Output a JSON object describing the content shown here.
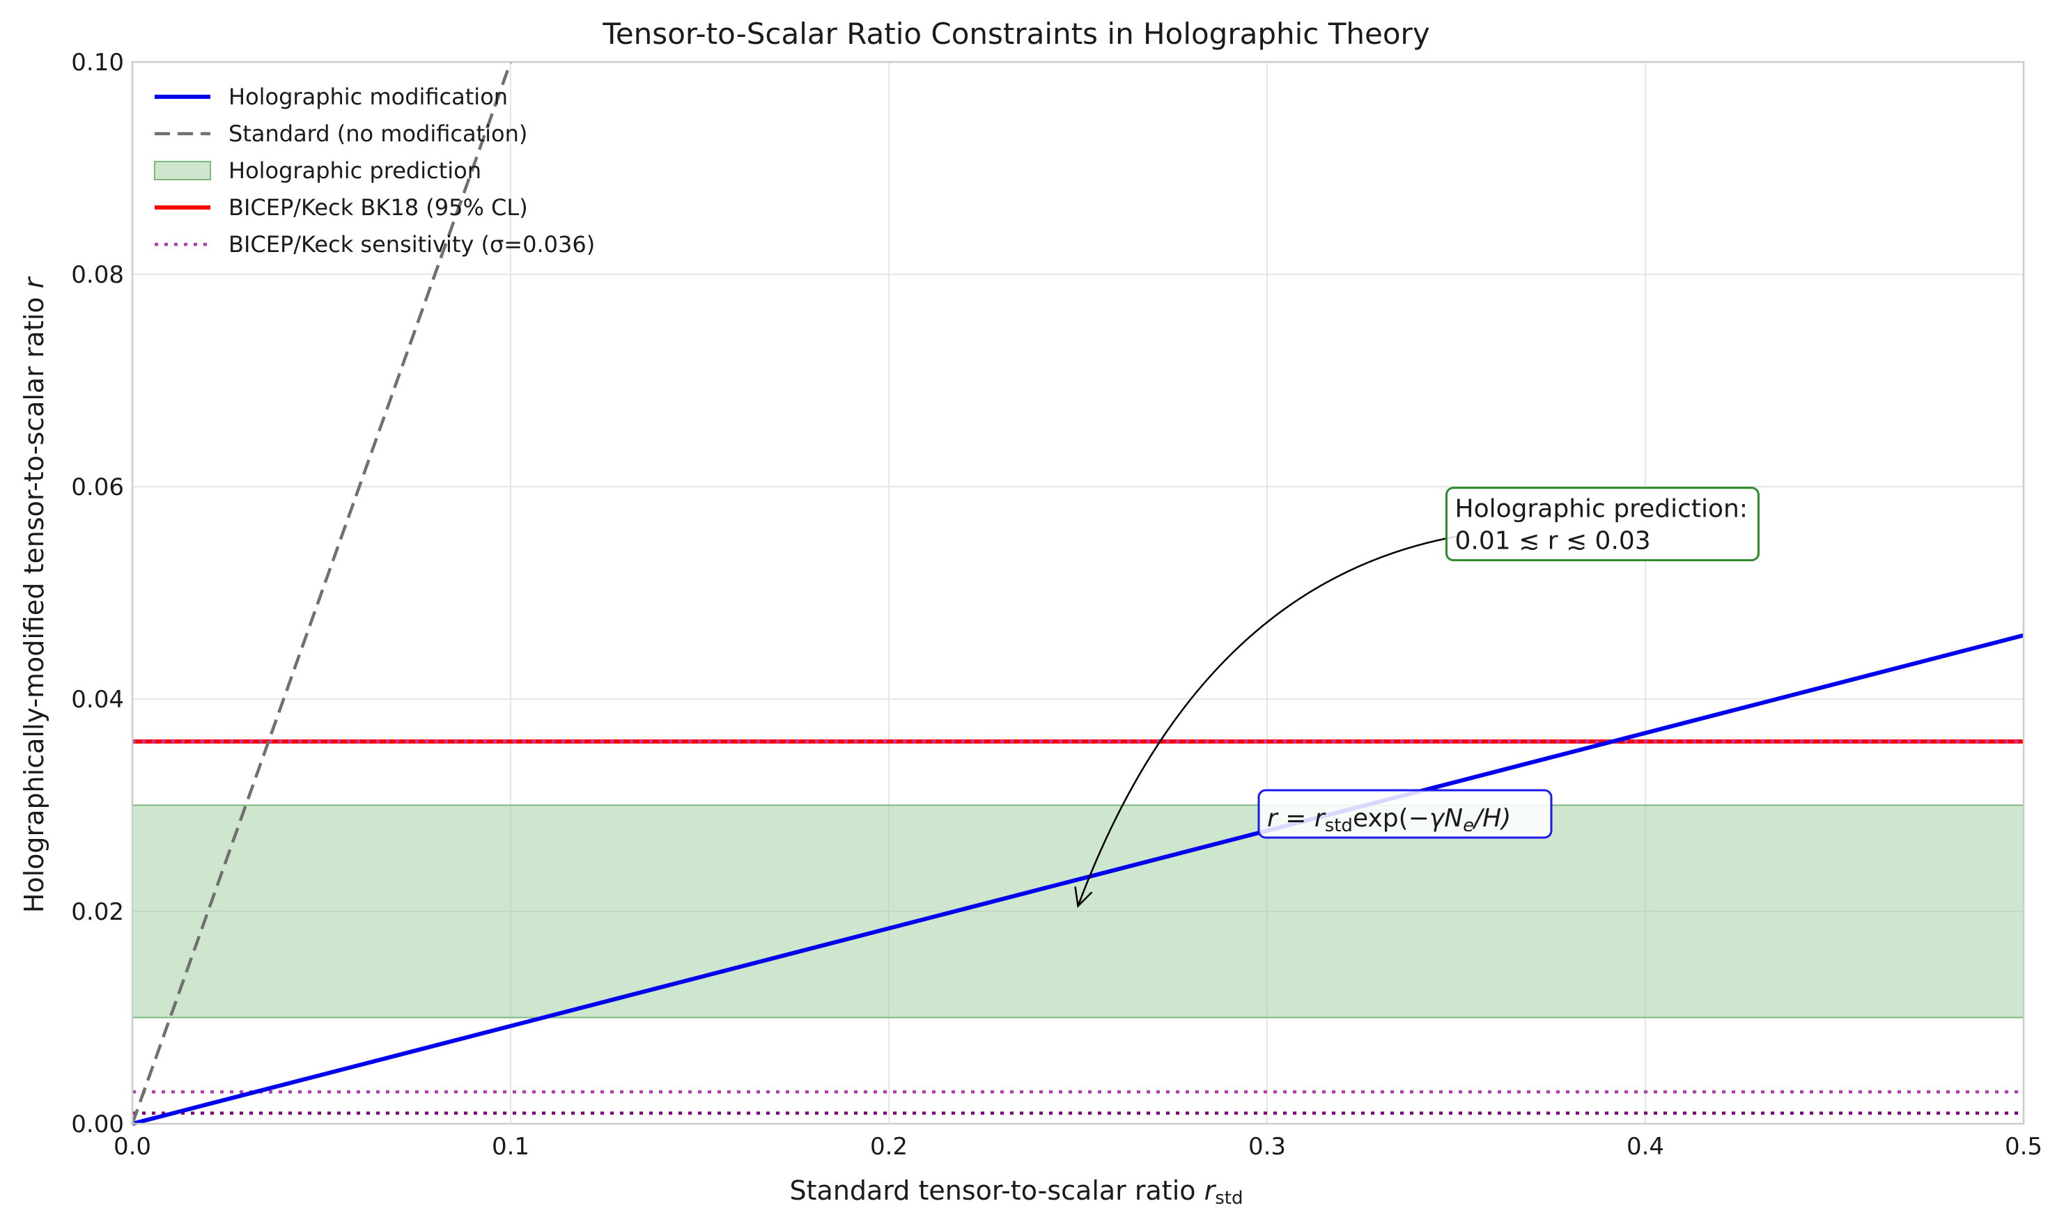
{
  "chart_data": {
    "type": "line",
    "title": "Tensor-to-Scalar Ratio Constraints in Holographic Theory",
    "xlabel": {
      "main": "Standard tensor-to-scalar ratio ",
      "var": "r",
      "sub": "std"
    },
    "ylabel": {
      "main": "Holographically-modified tensor-to-scalar ratio ",
      "var": "r"
    },
    "xlim": [
      0.0,
      0.5
    ],
    "ylim": [
      0.0,
      0.1
    ],
    "xticks": [
      0.0,
      0.1,
      0.2,
      0.3,
      0.4,
      0.5
    ],
    "xtick_labels": [
      "0.0",
      "0.1",
      "0.2",
      "0.3",
      "0.4",
      "0.5"
    ],
    "yticks": [
      0.0,
      0.02,
      0.04,
      0.06,
      0.08,
      0.1
    ],
    "ytick_labels": [
      "0.00",
      "0.02",
      "0.04",
      "0.06",
      "0.08",
      "0.10"
    ],
    "grid": true,
    "legend_position": "top-left",
    "series": [
      {
        "name": "Holographic modification",
        "style": "solid",
        "color": "#0000ee",
        "x": [
          0.0,
          0.5
        ],
        "y": [
          0.0,
          0.046
        ]
      },
      {
        "name": "Standard (no modification)",
        "style": "dashed",
        "color": "#707070",
        "x": [
          0.0,
          0.1
        ],
        "y": [
          0.0,
          0.1
        ]
      }
    ],
    "bands": [
      {
        "name": "Holographic prediction",
        "y0": 0.01,
        "y1": 0.03,
        "color": "#9fd09f"
      }
    ],
    "hlines": [
      {
        "name": "BICEP/Keck BK18 (95% CL)",
        "y": 0.036,
        "style": "solid",
        "color": "#ff0000"
      },
      {
        "name": "BICEP/Keck sensitivity (σ=0.036)",
        "y": 0.003,
        "style": "dotted",
        "color": "#b43cb4"
      },
      {
        "name": "",
        "y": 0.001,
        "style": "dotted",
        "color": "#800080"
      },
      {
        "name": "",
        "y": 0.036,
        "style": "dotted",
        "color": "#b43cb4"
      }
    ],
    "annotations": [
      {
        "line1": "Holographic prediction:",
        "line2": "0.01 ≲ r ≲ 0.03",
        "box_color": "#2e8b2e",
        "anchor_x": 0.35,
        "anchor_y": 0.0515,
        "arrow_to_x": 0.25,
        "arrow_to_y": 0.0205
      },
      {
        "text_r": "r",
        "text_eq": " = ",
        "text_rstd": "r",
        "text_sub": "std",
        "text_exp": "exp(−",
        "text_gamma": "γN",
        "text_e": "e",
        "text_H": "/H)",
        "box_color": "#1a1aee",
        "anchor_x": 0.3,
        "anchor_y": 0.028
      }
    ]
  }
}
